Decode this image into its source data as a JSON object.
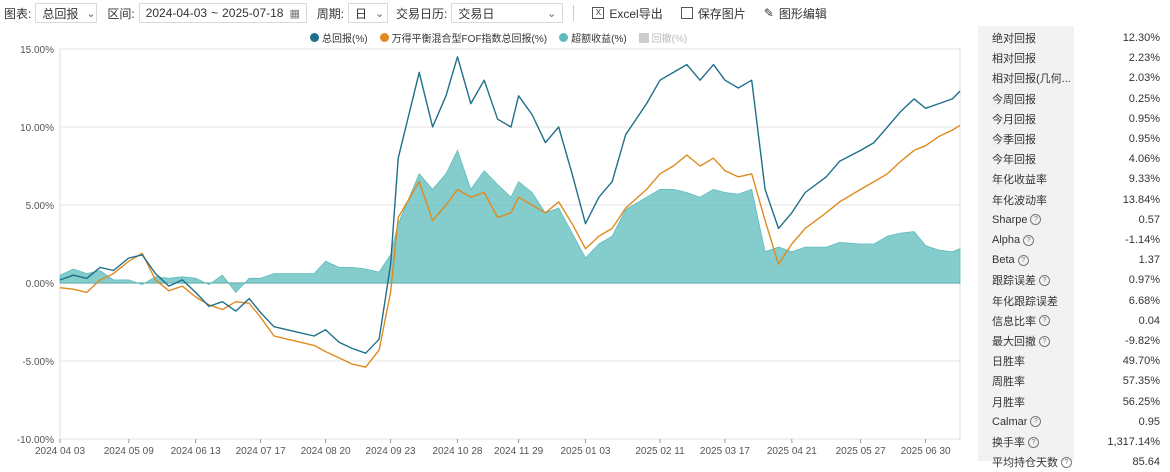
{
  "toolbar": {
    "chart_label": "图表:",
    "chart_value": "总回报",
    "range_label": "区间:",
    "start_date": "2024-04-03",
    "range_sep": "~",
    "end_date": "2025-07-18",
    "period_label": "周期:",
    "period_value": "日",
    "calendar_label": "交易日历:",
    "calendar_value": "交易日",
    "excel_label": "Excel导出",
    "save_image_label": "保存图片",
    "edit_chart_label": "图形编辑"
  },
  "colors": {
    "total_return": "#1f6f8b",
    "benchmark": "#e08a1e",
    "excess": "#5cbcbc",
    "drawdown": "#cccccc"
  },
  "chart_data": {
    "type": "line",
    "legend_position": "top",
    "grid": true,
    "ylim": [
      -10,
      15
    ],
    "yticks": [
      "15.00%",
      "10.00%",
      "5.00%",
      "0.00%",
      "-5.00%",
      "-10.00%"
    ],
    "xticks": [
      "2024-04-03",
      "2024-05-09",
      "2024-06-13",
      "2024-07-17",
      "2024-08-20",
      "2024-09-23",
      "2024-10-28",
      "2024-11-29",
      "2025-01-03",
      "2025-02-11",
      "2025-03-17",
      "2025-04-21",
      "2025-05-27",
      "2025-06-30"
    ],
    "x": [
      "2024-04-03",
      "2024-04-10",
      "2024-04-17",
      "2024-04-24",
      "2024-05-01",
      "2024-05-09",
      "2024-05-16",
      "2024-05-23",
      "2024-05-30",
      "2024-06-06",
      "2024-06-13",
      "2024-06-20",
      "2024-06-27",
      "2024-07-04",
      "2024-07-11",
      "2024-07-17",
      "2024-07-24",
      "2024-07-31",
      "2024-08-07",
      "2024-08-14",
      "2024-08-20",
      "2024-08-27",
      "2024-09-03",
      "2024-09-10",
      "2024-09-17",
      "2024-09-23",
      "2024-09-27",
      "2024-10-08",
      "2024-10-15",
      "2024-10-22",
      "2024-10-28",
      "2024-11-04",
      "2024-11-11",
      "2024-11-18",
      "2024-11-25",
      "2024-11-29",
      "2024-12-06",
      "2024-12-13",
      "2024-12-20",
      "2024-12-27",
      "2025-01-03",
      "2025-01-10",
      "2025-01-17",
      "2025-01-24",
      "2025-02-04",
      "2025-02-11",
      "2025-02-18",
      "2025-02-25",
      "2025-03-04",
      "2025-03-11",
      "2025-03-17",
      "2025-03-24",
      "2025-03-31",
      "2025-04-07",
      "2025-04-14",
      "2025-04-21",
      "2025-04-28",
      "2025-05-09",
      "2025-05-16",
      "2025-05-27",
      "2025-06-03",
      "2025-06-10",
      "2025-06-17",
      "2025-06-24",
      "2025-06-30",
      "2025-07-07",
      "2025-07-14",
      "2025-07-18"
    ],
    "series": [
      {
        "name": "总回报(%)",
        "values": [
          0.2,
          0.5,
          0.3,
          1.0,
          0.8,
          1.6,
          1.8,
          0.6,
          -0.2,
          0.2,
          -0.6,
          -1.5,
          -1.2,
          -1.8,
          -1.0,
          -1.9,
          -2.8,
          -3.0,
          -3.2,
          -3.4,
          -3.0,
          -3.8,
          -4.2,
          -4.5,
          -3.6,
          1.2,
          8.0,
          13.5,
          10.0,
          12.0,
          14.5,
          11.5,
          13.0,
          10.5,
          10.0,
          12.0,
          10.8,
          9.0,
          10.0,
          7.0,
          3.8,
          5.5,
          6.5,
          9.5,
          11.5,
          13.0,
          13.5,
          14.0,
          13.0,
          14.0,
          13.0,
          12.5,
          13.0,
          6.0,
          3.5,
          4.5,
          5.8,
          6.8,
          7.8,
          8.5,
          9.0,
          10.0,
          11.0,
          11.8,
          11.2,
          11.5,
          11.8,
          12.3
        ]
      },
      {
        "name": "万得平衡混合型FOF指数总回报(%)",
        "values": [
          -0.3,
          -0.4,
          -0.6,
          0.2,
          0.6,
          1.4,
          1.9,
          0.2,
          -0.5,
          -0.2,
          -0.9,
          -1.4,
          -1.7,
          -1.2,
          -1.3,
          -2.2,
          -3.4,
          -3.6,
          -3.8,
          -4.0,
          -4.4,
          -4.8,
          -5.2,
          -5.4,
          -4.3,
          -0.6,
          4.2,
          6.5,
          4.0,
          5.0,
          6.0,
          5.5,
          5.8,
          4.2,
          4.5,
          5.5,
          5.0,
          4.5,
          5.2,
          3.8,
          2.2,
          3.0,
          3.5,
          4.8,
          6.0,
          7.0,
          7.5,
          8.2,
          7.5,
          8.0,
          7.2,
          6.8,
          7.0,
          4.0,
          1.2,
          2.5,
          3.5,
          4.5,
          5.2,
          6.0,
          6.5,
          7.0,
          7.8,
          8.5,
          8.8,
          9.4,
          9.8,
          10.1
        ]
      },
      {
        "name": "超额收益(%)",
        "values": [
          0.5,
          0.9,
          0.6,
          0.8,
          0.2,
          0.2,
          -0.1,
          0.4,
          0.3,
          0.4,
          0.3,
          -0.1,
          0.5,
          -0.6,
          0.3,
          0.3,
          0.6,
          0.6,
          0.6,
          0.6,
          1.4,
          1.0,
          1.0,
          0.9,
          0.7,
          1.8,
          3.8,
          7.0,
          6.0,
          7.0,
          8.5,
          6.0,
          7.2,
          6.3,
          5.5,
          6.5,
          5.8,
          4.5,
          4.8,
          3.2,
          1.6,
          2.5,
          3.0,
          4.7,
          5.5,
          6.0,
          6.0,
          5.8,
          5.5,
          6.0,
          5.8,
          5.7,
          6.0,
          2.0,
          2.3,
          2.0,
          2.3,
          2.3,
          2.6,
          2.5,
          2.5,
          3.0,
          3.2,
          3.3,
          2.4,
          2.1,
          2.0,
          2.2
        ]
      }
    ],
    "hidden_series": [
      "回撤(%)"
    ]
  },
  "metrics": [
    {
      "label": "绝对回报",
      "value": "12.30%",
      "help": false
    },
    {
      "label": "相对回报",
      "value": "2.23%",
      "help": false
    },
    {
      "label": "相对回报(几何...",
      "value": "2.03%",
      "help": false
    },
    {
      "label": "今周回报",
      "value": "0.25%",
      "help": false
    },
    {
      "label": "今月回报",
      "value": "0.95%",
      "help": false
    },
    {
      "label": "今季回报",
      "value": "0.95%",
      "help": false
    },
    {
      "label": "今年回报",
      "value": "4.06%",
      "help": false
    },
    {
      "label": "年化收益率",
      "value": "9.33%",
      "help": false
    },
    {
      "label": "年化波动率",
      "value": "13.84%",
      "help": false
    },
    {
      "label": "Sharpe",
      "value": "0.57",
      "help": true
    },
    {
      "label": "Alpha",
      "value": "-1.14%",
      "help": true
    },
    {
      "label": "Beta",
      "value": "1.37",
      "help": true
    },
    {
      "label": "跟踪误差",
      "value": "0.97%",
      "help": true
    },
    {
      "label": "年化跟踪误差",
      "value": "6.68%",
      "help": false
    },
    {
      "label": "信息比率",
      "value": "0.04",
      "help": true
    },
    {
      "label": "最大回撤",
      "value": "-9.82%",
      "help": true
    },
    {
      "label": "日胜率",
      "value": "49.70%",
      "help": false
    },
    {
      "label": "周胜率",
      "value": "57.35%",
      "help": false
    },
    {
      "label": "月胜率",
      "value": "56.25%",
      "help": false
    },
    {
      "label": "Calmar",
      "value": "0.95",
      "help": true
    },
    {
      "label": "换手率",
      "value": "1,317.14%",
      "help": true
    },
    {
      "label": "平均持仓天数",
      "value": "85.64",
      "help": true
    }
  ]
}
